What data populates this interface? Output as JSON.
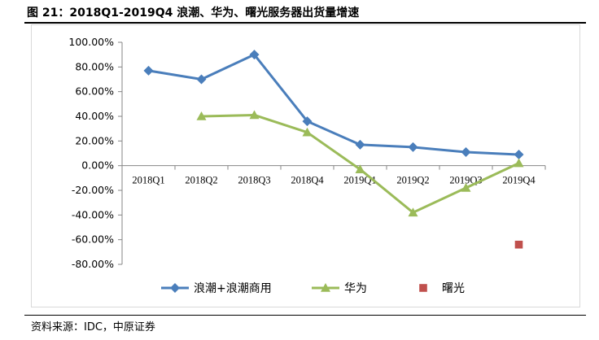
{
  "figure": {
    "title": "图 21：2018Q1-2019Q4 浪潮、华为、曙光服务器出货量增速",
    "source": "资料来源：IDC，中原证券"
  },
  "chart_data": {
    "type": "line",
    "categories": [
      "2018Q1",
      "2018Q2",
      "2018Q3",
      "2018Q4",
      "2019Q1",
      "2019Q2",
      "2019Q3",
      "2019Q4"
    ],
    "ylim": [
      -80,
      100
    ],
    "yticks": [
      "100.00%",
      "80.00%",
      "60.00%",
      "40.00%",
      "20.00%",
      "0.00%",
      "-20.00%",
      "-40.00%",
      "-60.00%",
      "-80.00%"
    ],
    "ytick_values": [
      100,
      80,
      60,
      40,
      20,
      0,
      -20,
      -40,
      -60,
      -80
    ],
    "grid": false,
    "legend_position": "bottom",
    "series": [
      {
        "name": "浪潮+浪潮商用",
        "color": "#4a7ebb",
        "marker": "diamond",
        "values": [
          77,
          70,
          90,
          36,
          17,
          15,
          11,
          9
        ]
      },
      {
        "name": "华为",
        "color": "#9bbb59",
        "marker": "triangle",
        "values": [
          null,
          40,
          41,
          27,
          -3,
          -38,
          -18,
          2
        ]
      },
      {
        "name": "曙光",
        "color": "#c0504d",
        "marker": "square",
        "values": [
          null,
          null,
          null,
          null,
          null,
          null,
          null,
          -64
        ]
      }
    ]
  }
}
